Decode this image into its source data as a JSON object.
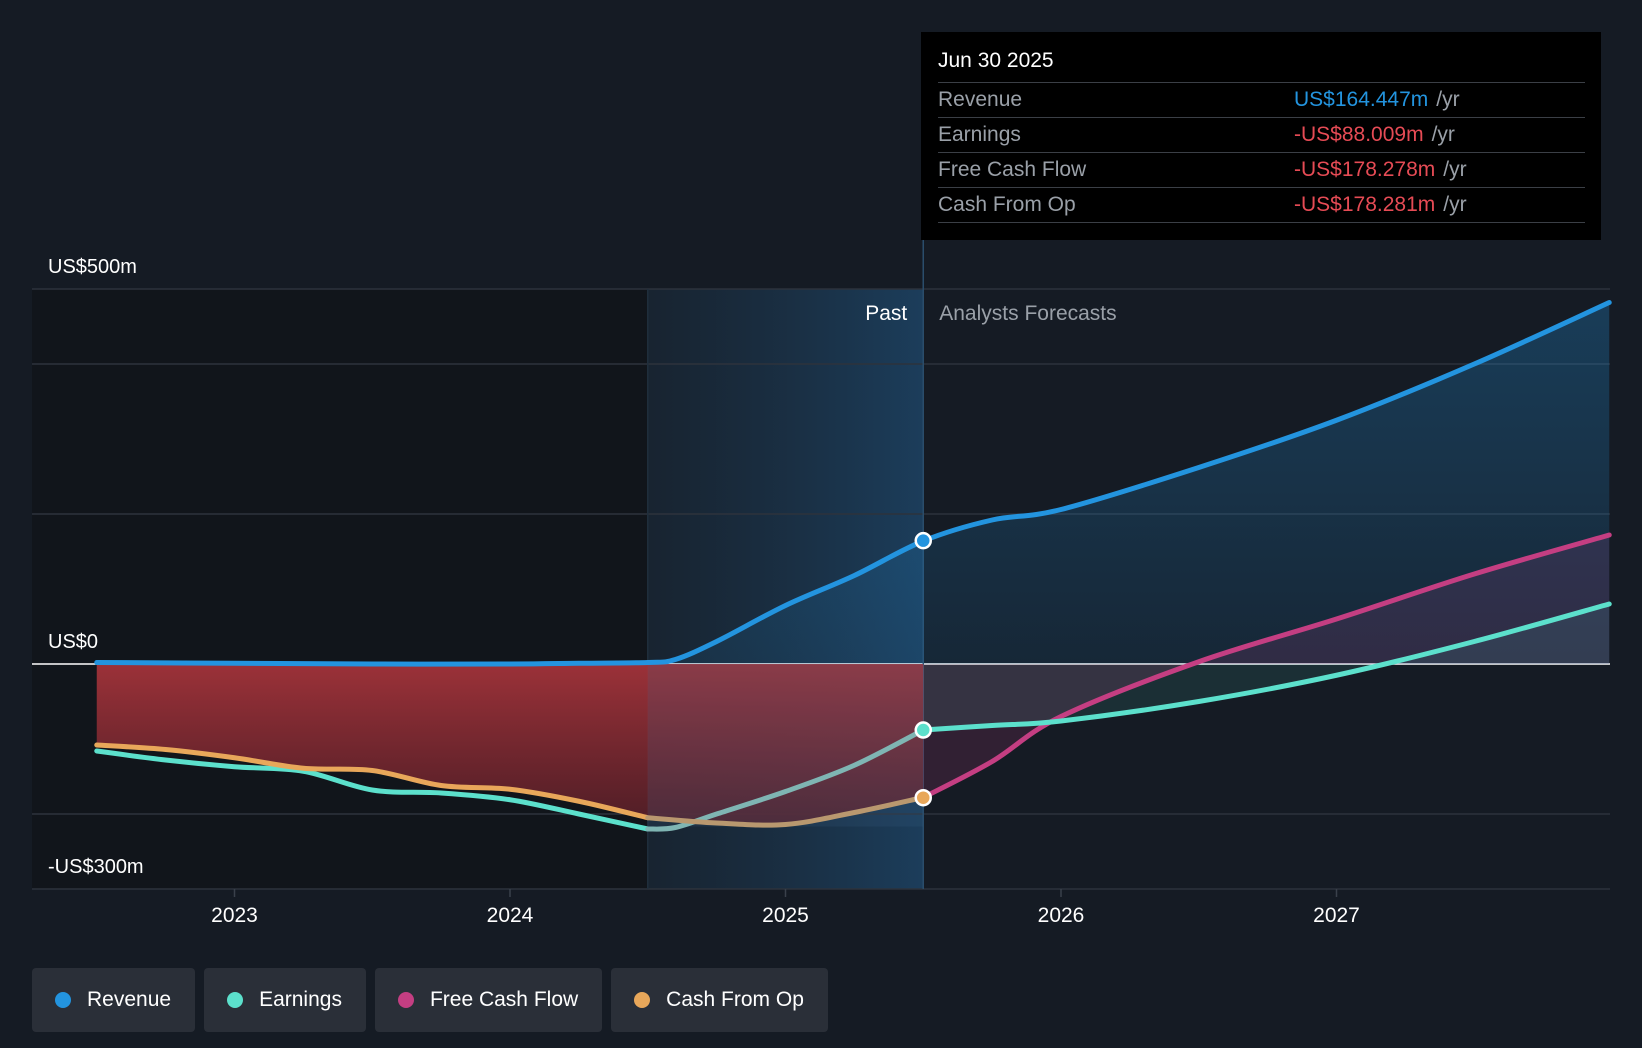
{
  "tooltip": {
    "date": "Jun 30 2025",
    "rows": [
      {
        "label": "Revenue",
        "value": "US$164.447m",
        "unit": "/yr",
        "color": "#2394df"
      },
      {
        "label": "Earnings",
        "value": "-US$88.009m",
        "unit": "/yr",
        "color": "#e64b55"
      },
      {
        "label": "Free Cash Flow",
        "value": "-US$178.278m",
        "unit": "/yr",
        "color": "#e64b55"
      },
      {
        "label": "Cash From Op",
        "value": "-US$178.281m",
        "unit": "/yr",
        "color": "#e64b55"
      }
    ]
  },
  "legend": [
    {
      "label": "Revenue",
      "color": "#2394df",
      "icon": "revenue-dot-icon"
    },
    {
      "label": "Earnings",
      "color": "#5ce0cc",
      "icon": "earnings-dot-icon"
    },
    {
      "label": "Free Cash Flow",
      "color": "#c43e82",
      "icon": "fcf-dot-icon"
    },
    {
      "label": "Cash From Op",
      "color": "#e8a75a",
      "icon": "cfo-dot-icon"
    }
  ],
  "chart_data": {
    "type": "line",
    "y_tick_labels": [
      {
        "value": 500,
        "label": "US$500m"
      },
      {
        "value": 0,
        "label": "US$0"
      },
      {
        "value": -300,
        "label": "-US$300m"
      }
    ],
    "ylim": [
      -300,
      500
    ],
    "xlim": [
      2022.26,
      2027.99
    ],
    "x_ticks": [
      {
        "value": 2023.0,
        "label": "2023"
      },
      {
        "value": 2024.0,
        "label": "2024"
      },
      {
        "value": 2025.0,
        "label": "2025"
      },
      {
        "value": 2026.0,
        "label": "2026"
      },
      {
        "value": 2027.0,
        "label": "2027"
      }
    ],
    "gridlines": [
      500,
      400,
      200,
      -200
    ],
    "past_label": "Past",
    "forecast_label": "Analysts Forecasts",
    "divider_x": 2025.5,
    "highlight_start_x": 2024.5,
    "series": [
      {
        "name": "Revenue",
        "color": "#2394df",
        "points": [
          [
            2022.5,
            2
          ],
          [
            2023.0,
            1
          ],
          [
            2023.5,
            0
          ],
          [
            2024.0,
            0
          ],
          [
            2024.25,
            1
          ],
          [
            2024.5,
            2
          ],
          [
            2024.6,
            6
          ],
          [
            2024.75,
            30
          ],
          [
            2025.0,
            78
          ],
          [
            2025.25,
            118
          ],
          [
            2025.5,
            164
          ],
          [
            2025.75,
            192
          ],
          [
            2026.0,
            206
          ],
          [
            2026.5,
            262
          ],
          [
            2027.0,
            325
          ],
          [
            2027.5,
            400
          ],
          [
            2027.99,
            482
          ]
        ]
      },
      {
        "name": "Earnings",
        "color": "#5ce0cc",
        "points": [
          [
            2022.5,
            -116
          ],
          [
            2022.75,
            -128
          ],
          [
            2023.0,
            -137
          ],
          [
            2023.25,
            -143
          ],
          [
            2023.5,
            -168
          ],
          [
            2023.75,
            -172
          ],
          [
            2024.0,
            -181
          ],
          [
            2024.25,
            -200
          ],
          [
            2024.5,
            -220
          ],
          [
            2024.6,
            -218
          ],
          [
            2024.75,
            -200
          ],
          [
            2025.0,
            -170
          ],
          [
            2025.25,
            -135
          ],
          [
            2025.5,
            -88
          ],
          [
            2025.75,
            -82
          ],
          [
            2026.0,
            -76
          ],
          [
            2026.5,
            -50
          ],
          [
            2027.0,
            -15
          ],
          [
            2027.5,
            30
          ],
          [
            2027.99,
            80
          ]
        ]
      },
      {
        "name": "Free Cash Flow",
        "color": "#c43e82",
        "points": [
          [
            2022.5,
            -108
          ],
          [
            2022.75,
            -114
          ],
          [
            2023.0,
            -125
          ],
          [
            2023.25,
            -139
          ],
          [
            2023.5,
            -142
          ],
          [
            2023.75,
            -162
          ],
          [
            2024.0,
            -167
          ],
          [
            2024.25,
            -183
          ],
          [
            2024.5,
            -205
          ],
          [
            2024.75,
            -212
          ],
          [
            2025.0,
            -214
          ],
          [
            2025.25,
            -198
          ],
          [
            2025.5,
            -178
          ],
          [
            2025.75,
            -130
          ],
          [
            2026.0,
            -70
          ],
          [
            2026.5,
            3
          ],
          [
            2027.0,
            60
          ],
          [
            2027.5,
            120
          ],
          [
            2027.99,
            172
          ]
        ]
      },
      {
        "name": "Cash From Op",
        "color": "#e8a75a",
        "points": [
          [
            2022.5,
            -108
          ],
          [
            2022.75,
            -114
          ],
          [
            2023.0,
            -125
          ],
          [
            2023.25,
            -139
          ],
          [
            2023.5,
            -142
          ],
          [
            2023.75,
            -162
          ],
          [
            2024.0,
            -167
          ],
          [
            2024.25,
            -183
          ],
          [
            2024.5,
            -205
          ],
          [
            2024.75,
            -212
          ],
          [
            2025.0,
            -214
          ],
          [
            2025.25,
            -198
          ],
          [
            2025.5,
            -178
          ]
        ]
      }
    ],
    "highlighted_points": [
      {
        "series": "Revenue",
        "x": 2025.5,
        "y": 164.447
      },
      {
        "series": "Earnings",
        "x": 2025.5,
        "y": -88.009
      },
      {
        "series": "Cash From Op",
        "x": 2025.5,
        "y": -178.281
      }
    ]
  }
}
